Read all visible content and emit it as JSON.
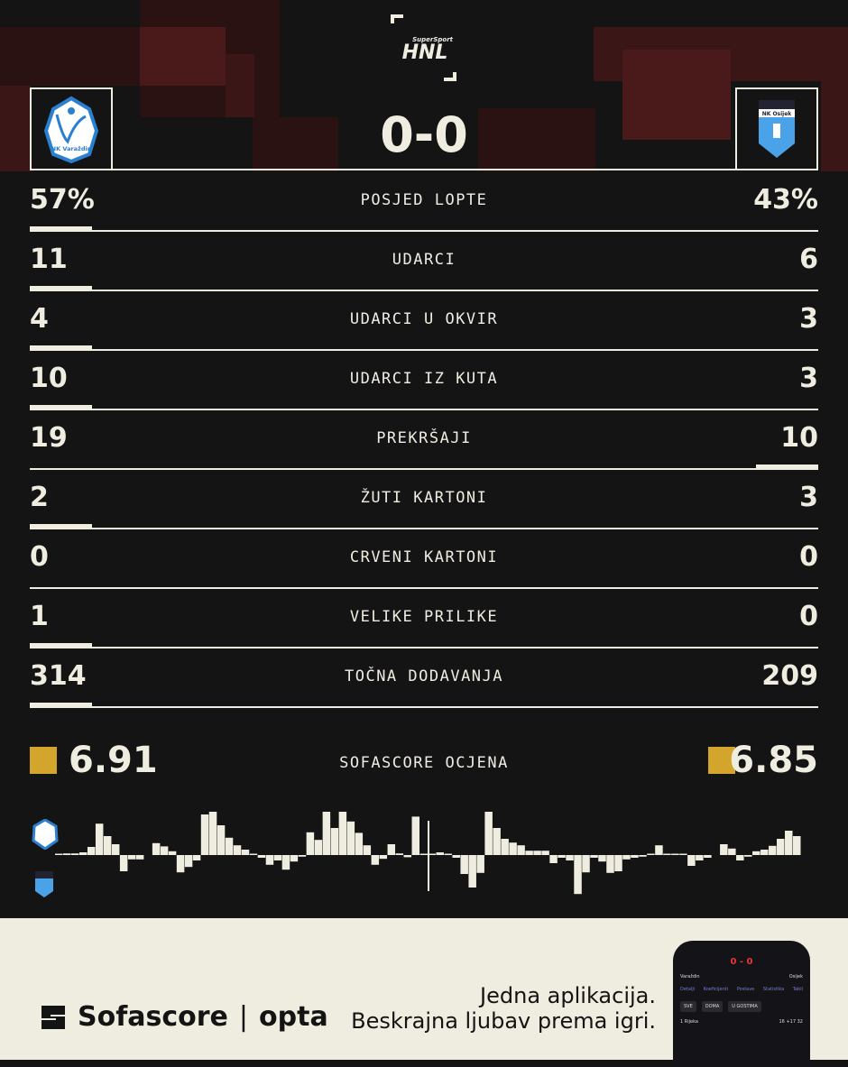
{
  "league": {
    "sponsor": "SuperSport",
    "name": "HNL"
  },
  "match": {
    "home_team": "NK Varaždin",
    "away_team": "NK Osijek",
    "home_score": "0",
    "away_score": "0",
    "separator": "-"
  },
  "stats": [
    {
      "label": "POSJED LOPTE",
      "home": "57%",
      "away": "43%",
      "leader": "home"
    },
    {
      "label": "UDARCI",
      "home": "11",
      "away": "6",
      "leader": "home"
    },
    {
      "label": "UDARCI U OKVIR",
      "home": "4",
      "away": "3",
      "leader": "home"
    },
    {
      "label": "UDARCI IZ KUTA",
      "home": "10",
      "away": "3",
      "leader": "home"
    },
    {
      "label": "PREKRŠAJI",
      "home": "19",
      "away": "10",
      "leader": "away"
    },
    {
      "label": "ŽUTI KARTONI",
      "home": "2",
      "away": "3",
      "leader": "home"
    },
    {
      "label": "CRVENI KARTONI",
      "home": "0",
      "away": "0",
      "leader": null
    },
    {
      "label": "VELIKE PRILIKE",
      "home": "1",
      "away": "0",
      "leader": "home"
    },
    {
      "label": "TOČNA DODAVANJA",
      "home": "314",
      "away": "209",
      "leader": "home"
    }
  ],
  "rating": {
    "label": "SOFASCORE OCJENA",
    "home": "6.91",
    "away": "6.85",
    "color": "#d4a52c"
  },
  "momentum": [
    1,
    3,
    3,
    5,
    15,
    58,
    35,
    20,
    -30,
    -8,
    -8,
    0,
    22,
    16,
    7,
    -32,
    -22,
    -10,
    75,
    83,
    55,
    32,
    18,
    10,
    2,
    -5,
    -18,
    -10,
    -27,
    -12,
    -3,
    42,
    28,
    82,
    50,
    92,
    62,
    41,
    18,
    -18,
    -7,
    20,
    3,
    -4,
    71,
    2,
    2,
    5,
    2,
    -5,
    -35,
    -60,
    -33,
    92,
    50,
    30,
    23,
    18,
    8,
    8,
    8,
    -15,
    -5,
    -10,
    -72,
    -32,
    -5,
    -12,
    -33,
    -30,
    -8,
    -5,
    -3,
    2,
    18,
    2,
    2,
    2,
    -20,
    -10,
    -5,
    0,
    20,
    12,
    -10,
    -3,
    7,
    10,
    17,
    30,
    45,
    35
  ],
  "footer": {
    "brand": "Sofascore",
    "partner": "opta",
    "tagline_1": "Jedna aplikacija.",
    "tagline_2": "Beskrajna ljubav prema igri."
  },
  "phone": {
    "score": "0 - 0",
    "home": "Varaždin",
    "away": "Osijek",
    "tabs": [
      "Detalji",
      "Koeficijenti",
      "Postave",
      "Statistika",
      "Tabli"
    ],
    "chips": [
      "SVE",
      "DOMA",
      "U GOSTIMA"
    ],
    "team_row": {
      "pos": "1",
      "name": "Rijeka",
      "played": "16",
      "diff": "+17",
      "pts": "32"
    }
  },
  "colors": {
    "background": "#141414",
    "foreground": "#efece0",
    "footer": "#efece0",
    "home_blue": "#2a7fd0"
  }
}
